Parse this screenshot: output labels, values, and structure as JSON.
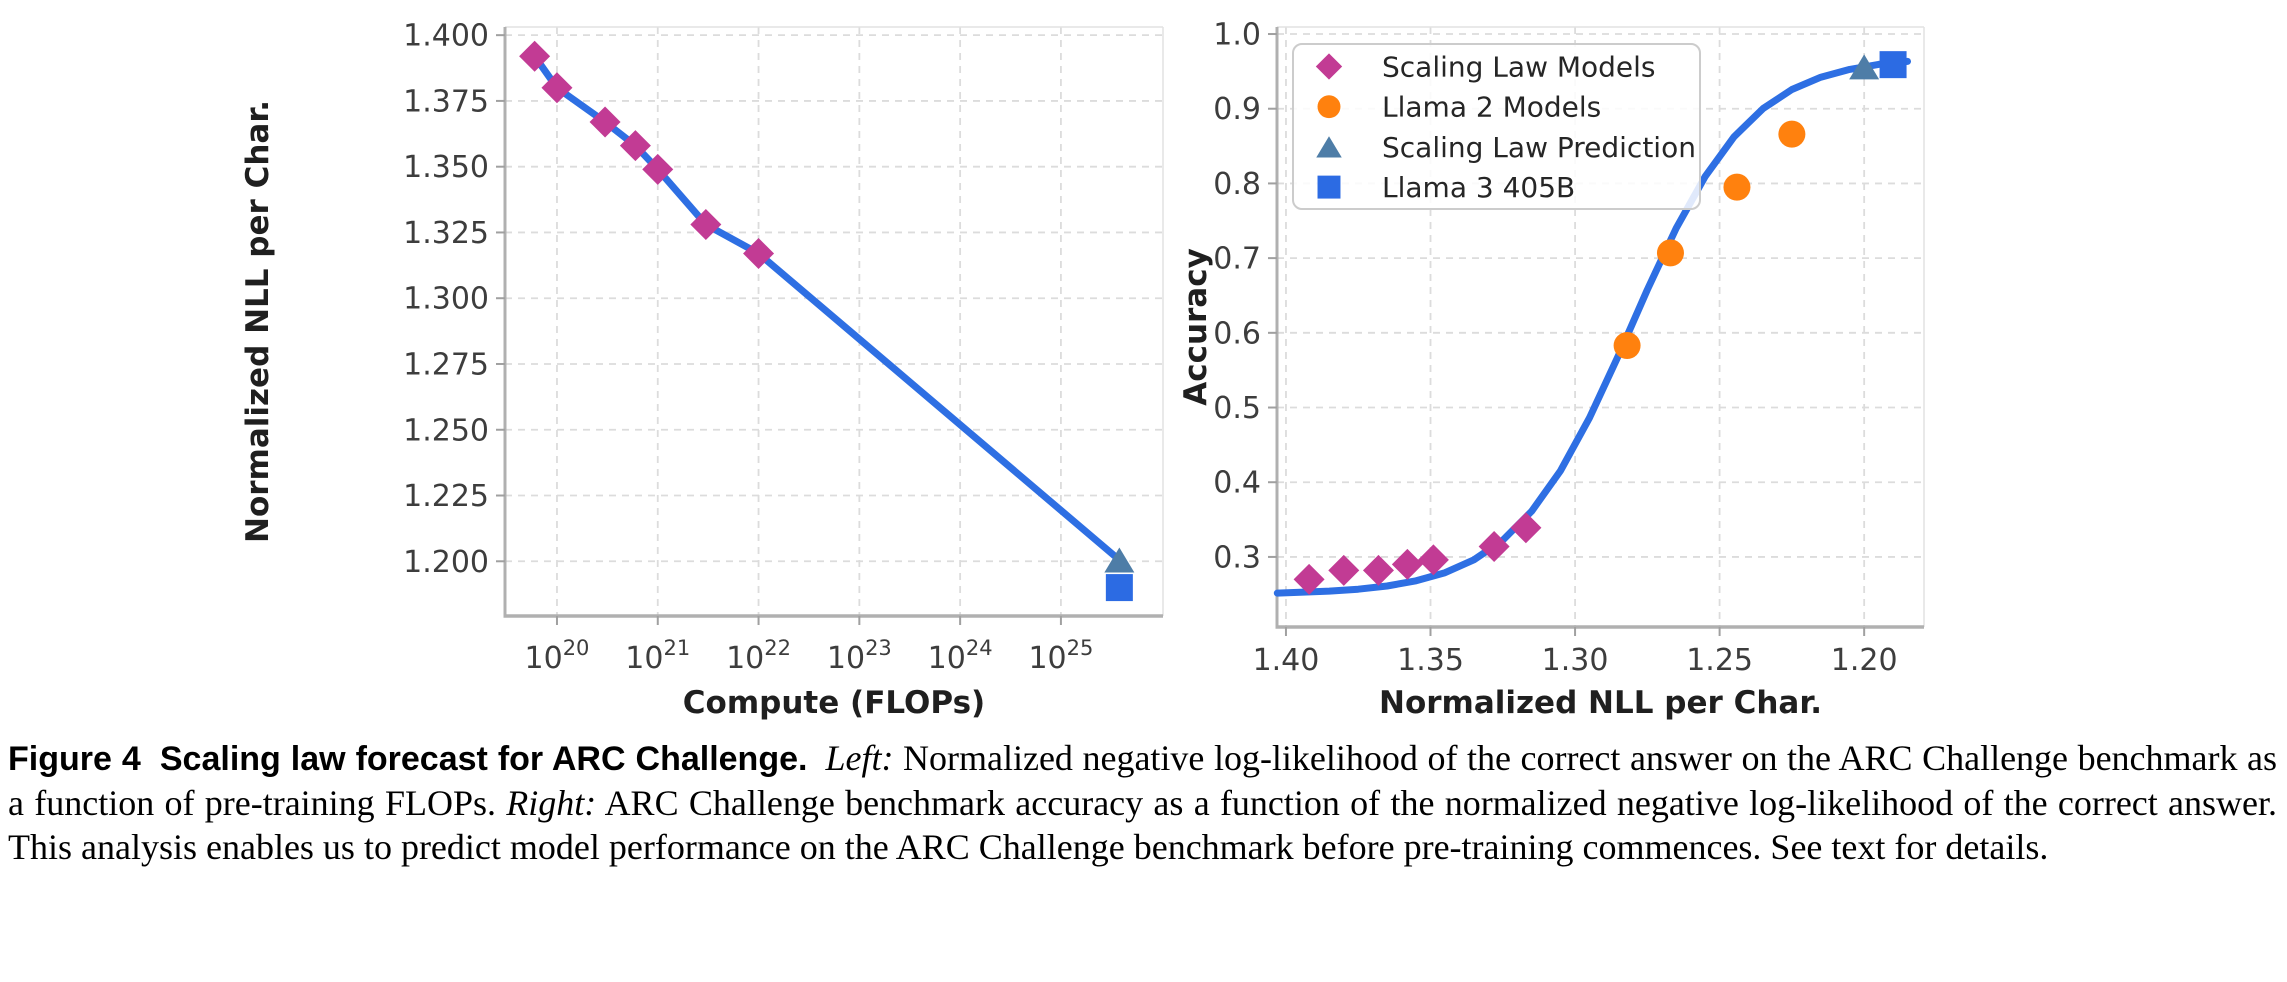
{
  "caption": {
    "label": "Figure 4",
    "title": "Scaling law forecast for ARC Challenge.",
    "left_marker": "Left:",
    "left_text": "Normalized negative log-likelihood of the correct answer on the ARC Challenge benchmark as a function of pre-training FLOPs.",
    "right_marker": "Right:",
    "right_text": "ARC Challenge benchmark accuracy as a function of the normalized negative log-likelihood of the correct answer. This analysis enables us to predict model performance on the ARC Challenge benchmark before pre-training commences. See text for details."
  },
  "colors": {
    "scaling_law_models": "#c23b94",
    "llama2_models": "#ff810e",
    "scaling_law_prediction": "#4e7da7",
    "llama3_405b": "#2c6be3",
    "fit_line": "#2e6fe3",
    "gridline": "#dcdcdc",
    "spine": "#b0b0b0",
    "tick_text": "#3d3d3d",
    "title_text": "#1f1f1f"
  },
  "chart_data": [
    {
      "id": "left",
      "type": "scatter",
      "x": {
        "label": "Compute (FLOPs)",
        "scale": "log",
        "min": 3.05e+19,
        "max": 1.03e+26,
        "ticks": [
          {
            "v": 1e+20,
            "base": "10",
            "sup": "20"
          },
          {
            "v": 1e+21,
            "base": "10",
            "sup": "21"
          },
          {
            "v": 1e+22,
            "base": "10",
            "sup": "22"
          },
          {
            "v": 1e+23,
            "base": "10",
            "sup": "23"
          },
          {
            "v": 1e+24,
            "base": "10",
            "sup": "24"
          },
          {
            "v": 1e+25,
            "base": "10",
            "sup": "25"
          }
        ]
      },
      "y": {
        "label": "Normalized NLL per Char.",
        "min": 1.1792,
        "max": 1.4031,
        "ticks": [
          {
            "v": 1.2,
            "label": "1.200"
          },
          {
            "v": 1.225,
            "label": "1.225"
          },
          {
            "v": 1.25,
            "label": "1.250"
          },
          {
            "v": 1.275,
            "label": "1.275"
          },
          {
            "v": 1.3,
            "label": "1.300"
          },
          {
            "v": 1.325,
            "label": "1.325"
          },
          {
            "v": 1.35,
            "label": "1.350"
          },
          {
            "v": 1.375,
            "label": "1.375"
          },
          {
            "v": 1.4,
            "label": "1.400"
          }
        ]
      },
      "series": [
        {
          "name": "scaling-law-fit-line",
          "kind": "line",
          "color": "#2e6fe3",
          "width": 7,
          "points": [
            [
              6e+19,
              1.392
            ],
            [
              1e+20,
              1.38
            ],
            [
              3e+20,
              1.367
            ],
            [
              6e+20,
              1.358
            ],
            [
              1e+21,
              1.349
            ],
            [
              3e+21,
              1.328
            ],
            [
              1e+22,
              1.317
            ],
            [
              3.8e+25,
              1.2005
            ]
          ]
        },
        {
          "name": "scaling-law-models",
          "kind": "marker",
          "marker": "diamond",
          "color": "#c23b94",
          "points": [
            [
              6e+19,
              1.392
            ],
            [
              1e+20,
              1.38
            ],
            [
              3e+20,
              1.367
            ],
            [
              6e+20,
              1.358
            ],
            [
              1e+21,
              1.349
            ],
            [
              3e+21,
              1.328
            ],
            [
              1e+22,
              1.317
            ]
          ]
        },
        {
          "name": "scaling-law-prediction",
          "kind": "marker",
          "marker": "triangle",
          "color": "#4e7da7",
          "points": [
            [
              3.8e+25,
              1.2005
            ]
          ]
        },
        {
          "name": "llama-3-405b",
          "kind": "marker",
          "marker": "square",
          "color": "#2c6be3",
          "points": [
            [
              3.8e+25,
              1.19
            ]
          ]
        }
      ]
    },
    {
      "id": "right",
      "type": "scatter",
      "x": {
        "label": "Normalized NLL per Char.",
        "scale": "linear",
        "inverted": true,
        "min": 1.1793,
        "max": 1.4031,
        "ticks": [
          {
            "v": 1.4,
            "label": "1.40"
          },
          {
            "v": 1.35,
            "label": "1.35"
          },
          {
            "v": 1.3,
            "label": "1.30"
          },
          {
            "v": 1.25,
            "label": "1.25"
          },
          {
            "v": 1.2,
            "label": "1.20"
          }
        ]
      },
      "y": {
        "label": "Accuracy",
        "min": 0.2062,
        "max": 1.0094,
        "ticks": [
          {
            "v": 0.3,
            "label": "0.3"
          },
          {
            "v": 0.4,
            "label": "0.4"
          },
          {
            "v": 0.5,
            "label": "0.5"
          },
          {
            "v": 0.6,
            "label": "0.6"
          },
          {
            "v": 0.7,
            "label": "0.7"
          },
          {
            "v": 0.8,
            "label": "0.8"
          },
          {
            "v": 0.9,
            "label": "0.9"
          },
          {
            "v": 1.0,
            "label": "1.0"
          }
        ]
      },
      "series": [
        {
          "name": "sigmoid-fit-curve",
          "kind": "line",
          "color": "#2e6fe3",
          "width": 7,
          "points": [
            [
              1.403,
              0.2516
            ],
            [
              1.395,
              0.2526
            ],
            [
              1.385,
              0.2542
            ],
            [
              1.375,
              0.2568
            ],
            [
              1.365,
              0.2611
            ],
            [
              1.355,
              0.268
            ],
            [
              1.345,
              0.2789
            ],
            [
              1.335,
              0.2961
            ],
            [
              1.325,
              0.3224
            ],
            [
              1.315,
              0.3612
            ],
            [
              1.305,
              0.4156
            ],
            [
              1.295,
              0.4862
            ],
            [
              1.285,
              0.5695
            ],
            [
              1.275,
              0.6576
            ],
            [
              1.265,
              0.7401
            ],
            [
              1.255,
              0.8094
            ],
            [
              1.245,
              0.8625
            ],
            [
              1.235,
              0.9001
            ],
            [
              1.225,
              0.9257
            ],
            [
              1.215,
              0.9422
            ],
            [
              1.205,
              0.9527
            ],
            [
              1.195,
              0.9594
            ],
            [
              1.185,
              0.9634
            ]
          ]
        },
        {
          "name": "scaling-law-models",
          "kind": "marker",
          "marker": "diamond",
          "color": "#c23b94",
          "points": [
            [
              1.392,
              0.27
            ],
            [
              1.38,
              0.282
            ],
            [
              1.368,
              0.282
            ],
            [
              1.358,
              0.29
            ],
            [
              1.349,
              0.296
            ],
            [
              1.328,
              0.314
            ],
            [
              1.317,
              0.339
            ]
          ]
        },
        {
          "name": "llama-2-models",
          "kind": "marker",
          "marker": "circle",
          "color": "#ff810e",
          "points": [
            [
              1.282,
              0.583
            ],
            [
              1.267,
              0.707
            ],
            [
              1.244,
              0.795
            ],
            [
              1.225,
              0.866
            ]
          ]
        },
        {
          "name": "scaling-law-prediction",
          "kind": "marker",
          "marker": "triangle",
          "color": "#4e7da7",
          "points": [
            [
              1.2,
              0.956
            ]
          ]
        },
        {
          "name": "llama-3-405b",
          "kind": "marker",
          "marker": "square",
          "color": "#2c6be3",
          "points": [
            [
              1.19,
              0.959
            ]
          ]
        }
      ],
      "legend": {
        "items": [
          {
            "label": "Scaling Law Models",
            "marker": "diamond",
            "color": "#c23b94"
          },
          {
            "label": "Llama 2 Models",
            "marker": "circle",
            "color": "#ff810e"
          },
          {
            "label": "Scaling Law Prediction",
            "marker": "triangle",
            "color": "#4e7da7"
          },
          {
            "label": "Llama 3 405B",
            "marker": "square",
            "color": "#2c6be3"
          }
        ]
      }
    }
  ]
}
